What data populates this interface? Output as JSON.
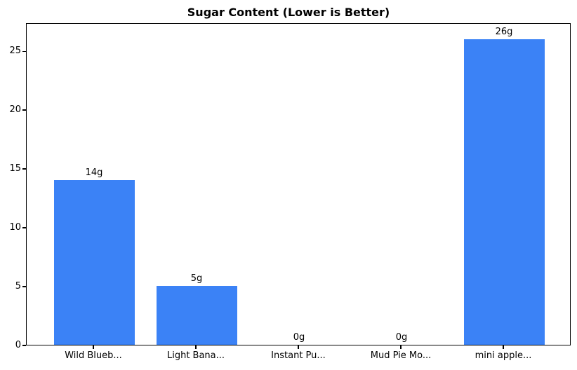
{
  "chart_data": {
    "type": "bar",
    "title": "Sugar Content (Lower is Better)",
    "categories": [
      "Wild Blueb...",
      "Light Bana...",
      "Instant Pu...",
      "Mud Pie Mo...",
      "mini apple..."
    ],
    "values": [
      14,
      5,
      0,
      0,
      26
    ],
    "bar_labels": [
      "14g",
      "5g",
      "0g",
      "0g",
      "26g"
    ],
    "unit": "g",
    "xlabel": "",
    "ylabel": "",
    "yticks": [
      "0",
      "5",
      "10",
      "15",
      "20",
      "25"
    ],
    "ytick_values": [
      0,
      5,
      10,
      15,
      20,
      25
    ],
    "ylim": [
      0,
      27.4
    ],
    "grid": false,
    "legend_position": "none",
    "bar_color": "#3b82f6",
    "axis_color": "#000000",
    "background_color": "#ffffff"
  }
}
